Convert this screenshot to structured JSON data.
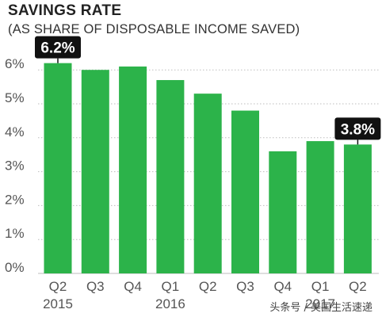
{
  "title": "SAVINGS RATE",
  "subtitle": "(AS SHARE OF DISPOSABLE INCOME SAVED)",
  "watermark": "头条号 / 美国生活速递",
  "colors": {
    "bar": "#2cb34a",
    "grid": "#bdbdbd",
    "label_bg": "#111111",
    "label_text": "#ffffff",
    "tick_text": "#555555"
  },
  "chart_data": {
    "type": "bar",
    "categories": [
      "Q2",
      "Q3",
      "Q4",
      "Q1",
      "Q2",
      "Q3",
      "Q4",
      "Q1",
      "Q2"
    ],
    "year_labels": [
      "2015",
      "",
      "",
      "2016",
      "",
      "",
      "",
      "2017",
      ""
    ],
    "values": [
      6.2,
      6.0,
      6.1,
      5.7,
      5.3,
      4.8,
      3.6,
      3.9,
      3.8
    ],
    "ylim": [
      0,
      6.5
    ],
    "yticks": [
      0,
      1,
      2,
      3,
      4,
      5,
      6
    ],
    "ytick_labels": [
      "0%",
      "1%",
      "2%",
      "3%",
      "4%",
      "5%",
      "6%"
    ],
    "annotations": [
      {
        "index": 0,
        "text": "6.2%"
      },
      {
        "index": 8,
        "text": "3.8%"
      }
    ],
    "grid": true,
    "xlabel": "",
    "ylabel": ""
  }
}
